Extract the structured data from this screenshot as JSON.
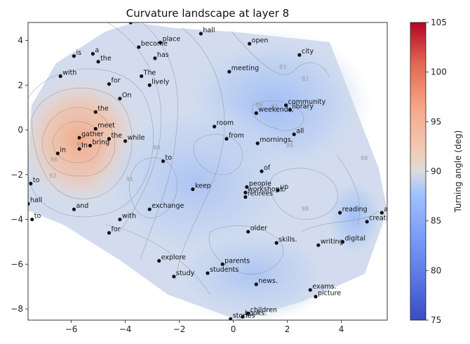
{
  "chart_data": {
    "type": "scatter",
    "title": "Curvature landscape at layer 8",
    "xlim": [
      -7.6,
      5.7
    ],
    "ylim": [
      -8.5,
      4.8
    ],
    "xticks": [
      -6,
      -4,
      -2,
      0,
      2,
      4
    ],
    "yticks": [
      4,
      2,
      0,
      -2,
      -4,
      -6,
      -8
    ],
    "grid": false,
    "colorbar": {
      "label": "Turning angle (deg)",
      "range": [
        75,
        105
      ],
      "ticks": [
        75,
        80,
        85,
        90,
        95,
        100,
        105
      ],
      "colormap": "coolwarm",
      "colors": [
        "#3b4cc0",
        "#6788ee",
        "#9abbff",
        "#c9d7f0",
        "#edd1c2",
        "#f7a889",
        "#e26952",
        "#b40426"
      ]
    },
    "contour_levels": [
      "82",
      "83",
      "86",
      "87",
      "88",
      "89",
      "90",
      "91",
      "92",
      "86",
      "86",
      "88"
    ],
    "points": [
      {
        "label": "filled",
        "x": -3.8,
        "y": 4.8
      },
      {
        "label": "hall",
        "x": -1.2,
        "y": 4.3
      },
      {
        "label": "place",
        "x": -2.7,
        "y": 3.9
      },
      {
        "label": "open",
        "x": 0.6,
        "y": 3.85
      },
      {
        "label": "become",
        "x": -3.5,
        "y": 3.7
      },
      {
        "label": "is",
        "x": -5.9,
        "y": 3.3
      },
      {
        "label": "a",
        "x": -5.2,
        "y": 3.4
      },
      {
        "label": "city",
        "x": 2.45,
        "y": 3.35
      },
      {
        "label": "has",
        "x": -2.9,
        "y": 3.2
      },
      {
        "label": "the",
        "x": -5.0,
        "y": 3.05
      },
      {
        "label": "meeting",
        "x": -0.15,
        "y": 2.6
      },
      {
        "label": "with",
        "x": -6.4,
        "y": 2.4
      },
      {
        "label": "The",
        "x": -3.4,
        "y": 2.4
      },
      {
        "label": "for",
        "x": -4.6,
        "y": 2.05
      },
      {
        "label": "lively",
        "x": -3.1,
        "y": 2.0
      },
      {
        "label": "On",
        "x": -4.2,
        "y": 1.4
      },
      {
        "label": "community",
        "x": 1.95,
        "y": 1.1
      },
      {
        "label": "library",
        "x": 2.1,
        "y": 0.9
      },
      {
        "label": "the",
        "x": -5.1,
        "y": 0.8
      },
      {
        "label": "weekends,",
        "x": 0.85,
        "y": 0.75
      },
      {
        "label": "room",
        "x": -0.7,
        "y": 0.15
      },
      {
        "label": "meet",
        "x": -5.1,
        "y": 0.05
      },
      {
        "label": "all",
        "x": 2.25,
        "y": -0.2
      },
      {
        "label": "gather",
        "x": -5.7,
        "y": -0.35
      },
      {
        "label": "the",
        "x": -4.6,
        "y": -0.4
      },
      {
        "label": "from",
        "x": -0.25,
        "y": -0.4
      },
      {
        "label": "while",
        "x": -4.0,
        "y": -0.5
      },
      {
        "label": "bring",
        "x": -5.3,
        "y": -0.7
      },
      {
        "label": "mornings,",
        "x": 0.9,
        "y": -0.6
      },
      {
        "label": "In",
        "x": -5.7,
        "y": -0.85
      },
      {
        "label": "in",
        "x": -6.5,
        "y": -1.05
      },
      {
        "label": "to",
        "x": -2.6,
        "y": -1.4
      },
      {
        "label": "of",
        "x": 1.05,
        "y": -1.85
      },
      {
        "label": "to",
        "x": -7.5,
        "y": -2.4
      },
      {
        "label": "keep",
        "x": -1.5,
        "y": -2.65
      },
      {
        "label": "people",
        "x": 0.5,
        "y": -2.55
      },
      {
        "label": "up",
        "x": 1.65,
        "y": -2.7
      },
      {
        "label": "workshops,",
        "x": 0.45,
        "y": -2.8
      },
      {
        "label": "retirees",
        "x": 0.45,
        "y": -3.0
      },
      {
        "label": "and",
        "x": -5.9,
        "y": -3.55
      },
      {
        "label": "exchange",
        "x": -3.1,
        "y": -3.55
      },
      {
        "label": "ages.",
        "x": 5.5,
        "y": -3.7
      },
      {
        "label": "reading",
        "x": 3.95,
        "y": -3.7
      },
      {
        "label": "with",
        "x": -4.2,
        "y": -4.0
      },
      {
        "label": "to",
        "x": -7.45,
        "y": -4.0
      },
      {
        "label": "creative",
        "x": 4.95,
        "y": -4.1
      },
      {
        "label": "older",
        "x": 0.55,
        "y": -4.55
      },
      {
        "label": "for",
        "x": -4.6,
        "y": -4.6
      },
      {
        "label": "digital",
        "x": 4.05,
        "y": -5.0
      },
      {
        "label": "skills.",
        "x": 1.6,
        "y": -5.05
      },
      {
        "label": "writing",
        "x": 3.15,
        "y": -5.15
      },
      {
        "label": "explore",
        "x": -2.75,
        "y": -5.85
      },
      {
        "label": "parents",
        "x": -0.4,
        "y": -6.0
      },
      {
        "label": "students",
        "x": -0.95,
        "y": -6.4
      },
      {
        "label": "study",
        "x": -2.2,
        "y": -6.55
      },
      {
        "label": "news.",
        "x": 0.85,
        "y": -6.9
      },
      {
        "label": "exams.",
        "x": 2.85,
        "y": -7.15
      },
      {
        "label": "picture",
        "x": 3.05,
        "y": -7.45
      },
      {
        "label": "children",
        "x": 0.55,
        "y": -8.2
      },
      {
        "label": "books.",
        "x": 0.35,
        "y": -8.35
      },
      {
        "label": "stories",
        "x": -0.1,
        "y": -8.45
      },
      {
        "label": "hall",
        "x": -7.6,
        "y": -3.3
      }
    ]
  }
}
